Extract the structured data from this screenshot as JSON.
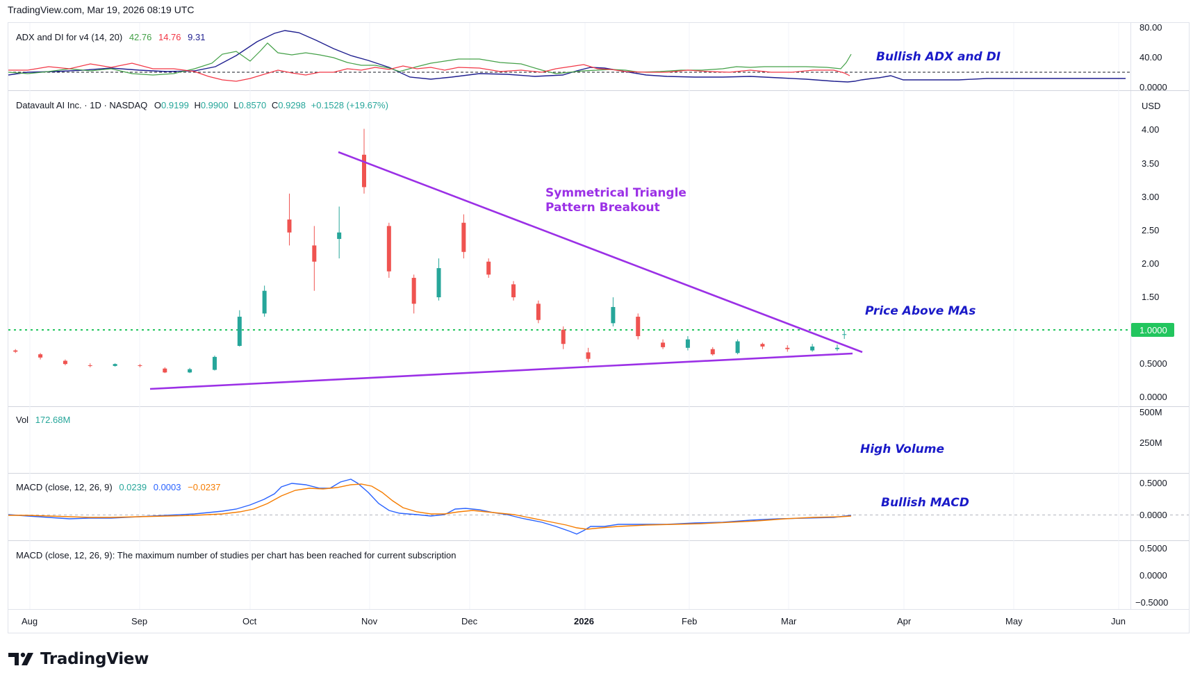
{
  "header": {
    "text": "TradingView.com, Mar 19, 2026 08:19 UTC"
  },
  "brand": {
    "name": "TradingView"
  },
  "colors": {
    "up": "#26a69a",
    "down": "#ef5350",
    "upVol": "#8fd1c8",
    "downVol": "#f5a3a6",
    "triangle": "#9b30e6",
    "annotation": "#1a1ac8",
    "adx": "#1f1f8f",
    "diPlus": "#43a047",
    "diMinus": "#f23645",
    "macd": "#2962ff",
    "signal": "#f57c00",
    "level": "#22c55e",
    "triangleText": "#9b30e6"
  },
  "adx_pane": {
    "title": "ADX and DI for v4 (14, 20)",
    "values": [
      "42.76",
      "14.76",
      "9.31"
    ],
    "ticks": [
      "80.00",
      "40.00",
      "0.0000"
    ]
  },
  "price_pane": {
    "title": "Datavault AI Inc. · 1D · NASDAQ",
    "o_label": "O",
    "o": "0.9199",
    "h_label": "H",
    "h": "0.9900",
    "l_label": "L",
    "l": "0.8570",
    "c_label": "C",
    "c": "0.9298",
    "change": "+0.1528 (+19.67%)",
    "currency": "USD",
    "ticks": [
      "4.00",
      "3.50",
      "3.00",
      "2.50",
      "2.00",
      "1.50",
      "0.5000",
      "0.0000"
    ],
    "level_label": "1.0000"
  },
  "vol_pane": {
    "title": "Vol",
    "value": "172.68M",
    "ticks": [
      "500M",
      "250M"
    ]
  },
  "macd_pane": {
    "title": "MACD (close, 12, 26, 9)",
    "values": [
      "0.0239",
      "0.0003",
      "−0.0237"
    ],
    "ticks": [
      "0.5000",
      "0.0000"
    ]
  },
  "macd2_pane": {
    "message": "MACD (close, 12, 26, 9): The maximum number of studies per chart has been reached for current subscription",
    "ticks": [
      "0.5000",
      "0.0000",
      "−0.5000"
    ]
  },
  "time_axis": [
    "Aug",
    "Sep",
    "Oct",
    "Nov",
    "Dec",
    "2026",
    "Feb",
    "Mar",
    "Apr",
    "May",
    "Jun"
  ],
  "annotations": {
    "adx": "Bullish ADX and DI",
    "triangle_line1": "Symmetrical Triangle",
    "triangle_line2": "Pattern Breakout",
    "price": "Price Above MAs",
    "volume": "High Volume",
    "macd": "Bullish MACD"
  },
  "chart_data": {
    "type": "candlestick",
    "title": "Datavault AI Inc. · 1D · NASDAQ",
    "ylim": [
      0,
      4.2
    ],
    "key_level": 1.0,
    "series": [
      {
        "name": "Datavault AI Inc. · 1D · NASDAQ",
        "points": [
          {
            "x": "2025-07-28",
            "o": 0.68,
            "h": 0.7,
            "l": 0.64,
            "c": 0.66
          },
          {
            "x": "2025-08-04",
            "o": 0.62,
            "h": 0.64,
            "l": 0.54,
            "c": 0.57
          },
          {
            "x": "2025-08-11",
            "o": 0.52,
            "h": 0.54,
            "l": 0.45,
            "c": 0.47
          },
          {
            "x": "2025-08-18",
            "o": 0.45,
            "h": 0.48,
            "l": 0.42,
            "c": 0.44
          },
          {
            "x": "2025-08-25",
            "o": 0.44,
            "h": 0.48,
            "l": 0.43,
            "c": 0.47
          },
          {
            "x": "2025-09-01",
            "o": 0.45,
            "h": 0.47,
            "l": 0.42,
            "c": 0.44
          },
          {
            "x": "2025-09-08",
            "o": 0.4,
            "h": 0.42,
            "l": 0.33,
            "c": 0.34
          },
          {
            "x": "2025-09-15",
            "o": 0.34,
            "h": 0.41,
            "l": 0.33,
            "c": 0.39
          },
          {
            "x": "2025-09-22",
            "o": 0.38,
            "h": 0.6,
            "l": 0.37,
            "c": 0.58
          },
          {
            "x": "2025-09-29",
            "o": 0.75,
            "h": 1.3,
            "l": 0.74,
            "c": 1.2
          },
          {
            "x": "2025-10-06",
            "o": 1.25,
            "h": 1.68,
            "l": 1.2,
            "c": 1.6
          },
          {
            "x": "2025-10-13",
            "o": 2.7,
            "h": 3.1,
            "l": 2.3,
            "c": 2.5
          },
          {
            "x": "2025-10-20",
            "o": 2.3,
            "h": 2.6,
            "l": 1.6,
            "c": 2.05
          },
          {
            "x": "2025-10-27",
            "o": 2.4,
            "h": 2.9,
            "l": 2.1,
            "c": 2.5
          },
          {
            "x": "2025-11-03",
            "o": 3.7,
            "h": 4.1,
            "l": 3.1,
            "c": 3.2
          },
          {
            "x": "2025-11-10",
            "o": 2.6,
            "h": 2.65,
            "l": 1.8,
            "c": 1.9
          },
          {
            "x": "2025-11-17",
            "o": 1.8,
            "h": 1.85,
            "l": 1.25,
            "c": 1.4
          },
          {
            "x": "2025-11-24",
            "o": 1.5,
            "h": 2.1,
            "l": 1.45,
            "c": 1.95
          },
          {
            "x": "2025-12-01",
            "o": 2.65,
            "h": 2.78,
            "l": 2.1,
            "c": 2.2
          },
          {
            "x": "2025-12-08",
            "o": 2.05,
            "h": 2.1,
            "l": 1.8,
            "c": 1.85
          },
          {
            "x": "2025-12-15",
            "o": 1.7,
            "h": 1.75,
            "l": 1.45,
            "c": 1.5
          },
          {
            "x": "2025-12-22",
            "o": 1.4,
            "h": 1.45,
            "l": 1.1,
            "c": 1.15
          },
          {
            "x": "2025-12-29",
            "o": 1.0,
            "h": 1.05,
            "l": 0.7,
            "c": 0.78
          },
          {
            "x": "2026-01-05",
            "o": 0.65,
            "h": 0.72,
            "l": 0.5,
            "c": 0.55
          },
          {
            "x": "2026-01-12",
            "o": 1.1,
            "h": 1.5,
            "l": 1.05,
            "c": 1.35
          },
          {
            "x": "2026-01-19",
            "o": 1.2,
            "h": 1.25,
            "l": 0.85,
            "c": 0.9
          },
          {
            "x": "2026-01-26",
            "o": 0.8,
            "h": 0.85,
            "l": 0.7,
            "c": 0.73
          },
          {
            "x": "2026-02-02",
            "o": 0.72,
            "h": 0.9,
            "l": 0.68,
            "c": 0.85
          },
          {
            "x": "2026-02-09",
            "o": 0.7,
            "h": 0.73,
            "l": 0.6,
            "c": 0.62
          },
          {
            "x": "2026-02-16",
            "o": 0.64,
            "h": 0.85,
            "l": 0.62,
            "c": 0.82
          },
          {
            "x": "2026-02-23",
            "o": 0.78,
            "h": 0.8,
            "l": 0.7,
            "c": 0.74
          },
          {
            "x": "2026-03-02",
            "o": 0.72,
            "h": 0.76,
            "l": 0.66,
            "c": 0.7
          },
          {
            "x": "2026-03-09",
            "o": 0.68,
            "h": 0.78,
            "l": 0.66,
            "c": 0.74
          },
          {
            "x": "2026-03-16",
            "o": 0.7,
            "h": 0.77,
            "l": 0.67,
            "c": 0.72
          },
          {
            "x": "2026-03-18",
            "o": 0.9199,
            "h": 0.99,
            "l": 0.857,
            "c": 0.9298
          }
        ]
      }
    ]
  }
}
